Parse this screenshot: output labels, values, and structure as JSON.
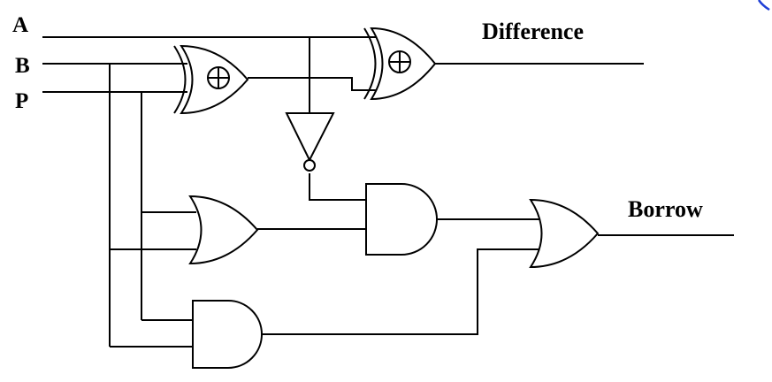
{
  "inputs": {
    "a": "A",
    "b": "B",
    "p": "P"
  },
  "outputs": {
    "difference": "Difference",
    "borrow": "Borrow"
  },
  "gate_symbols": {
    "xor": "⊕"
  },
  "colors": {
    "line": "#000000",
    "background": "#ffffff",
    "corner_mark": "#1f3fd6"
  }
}
